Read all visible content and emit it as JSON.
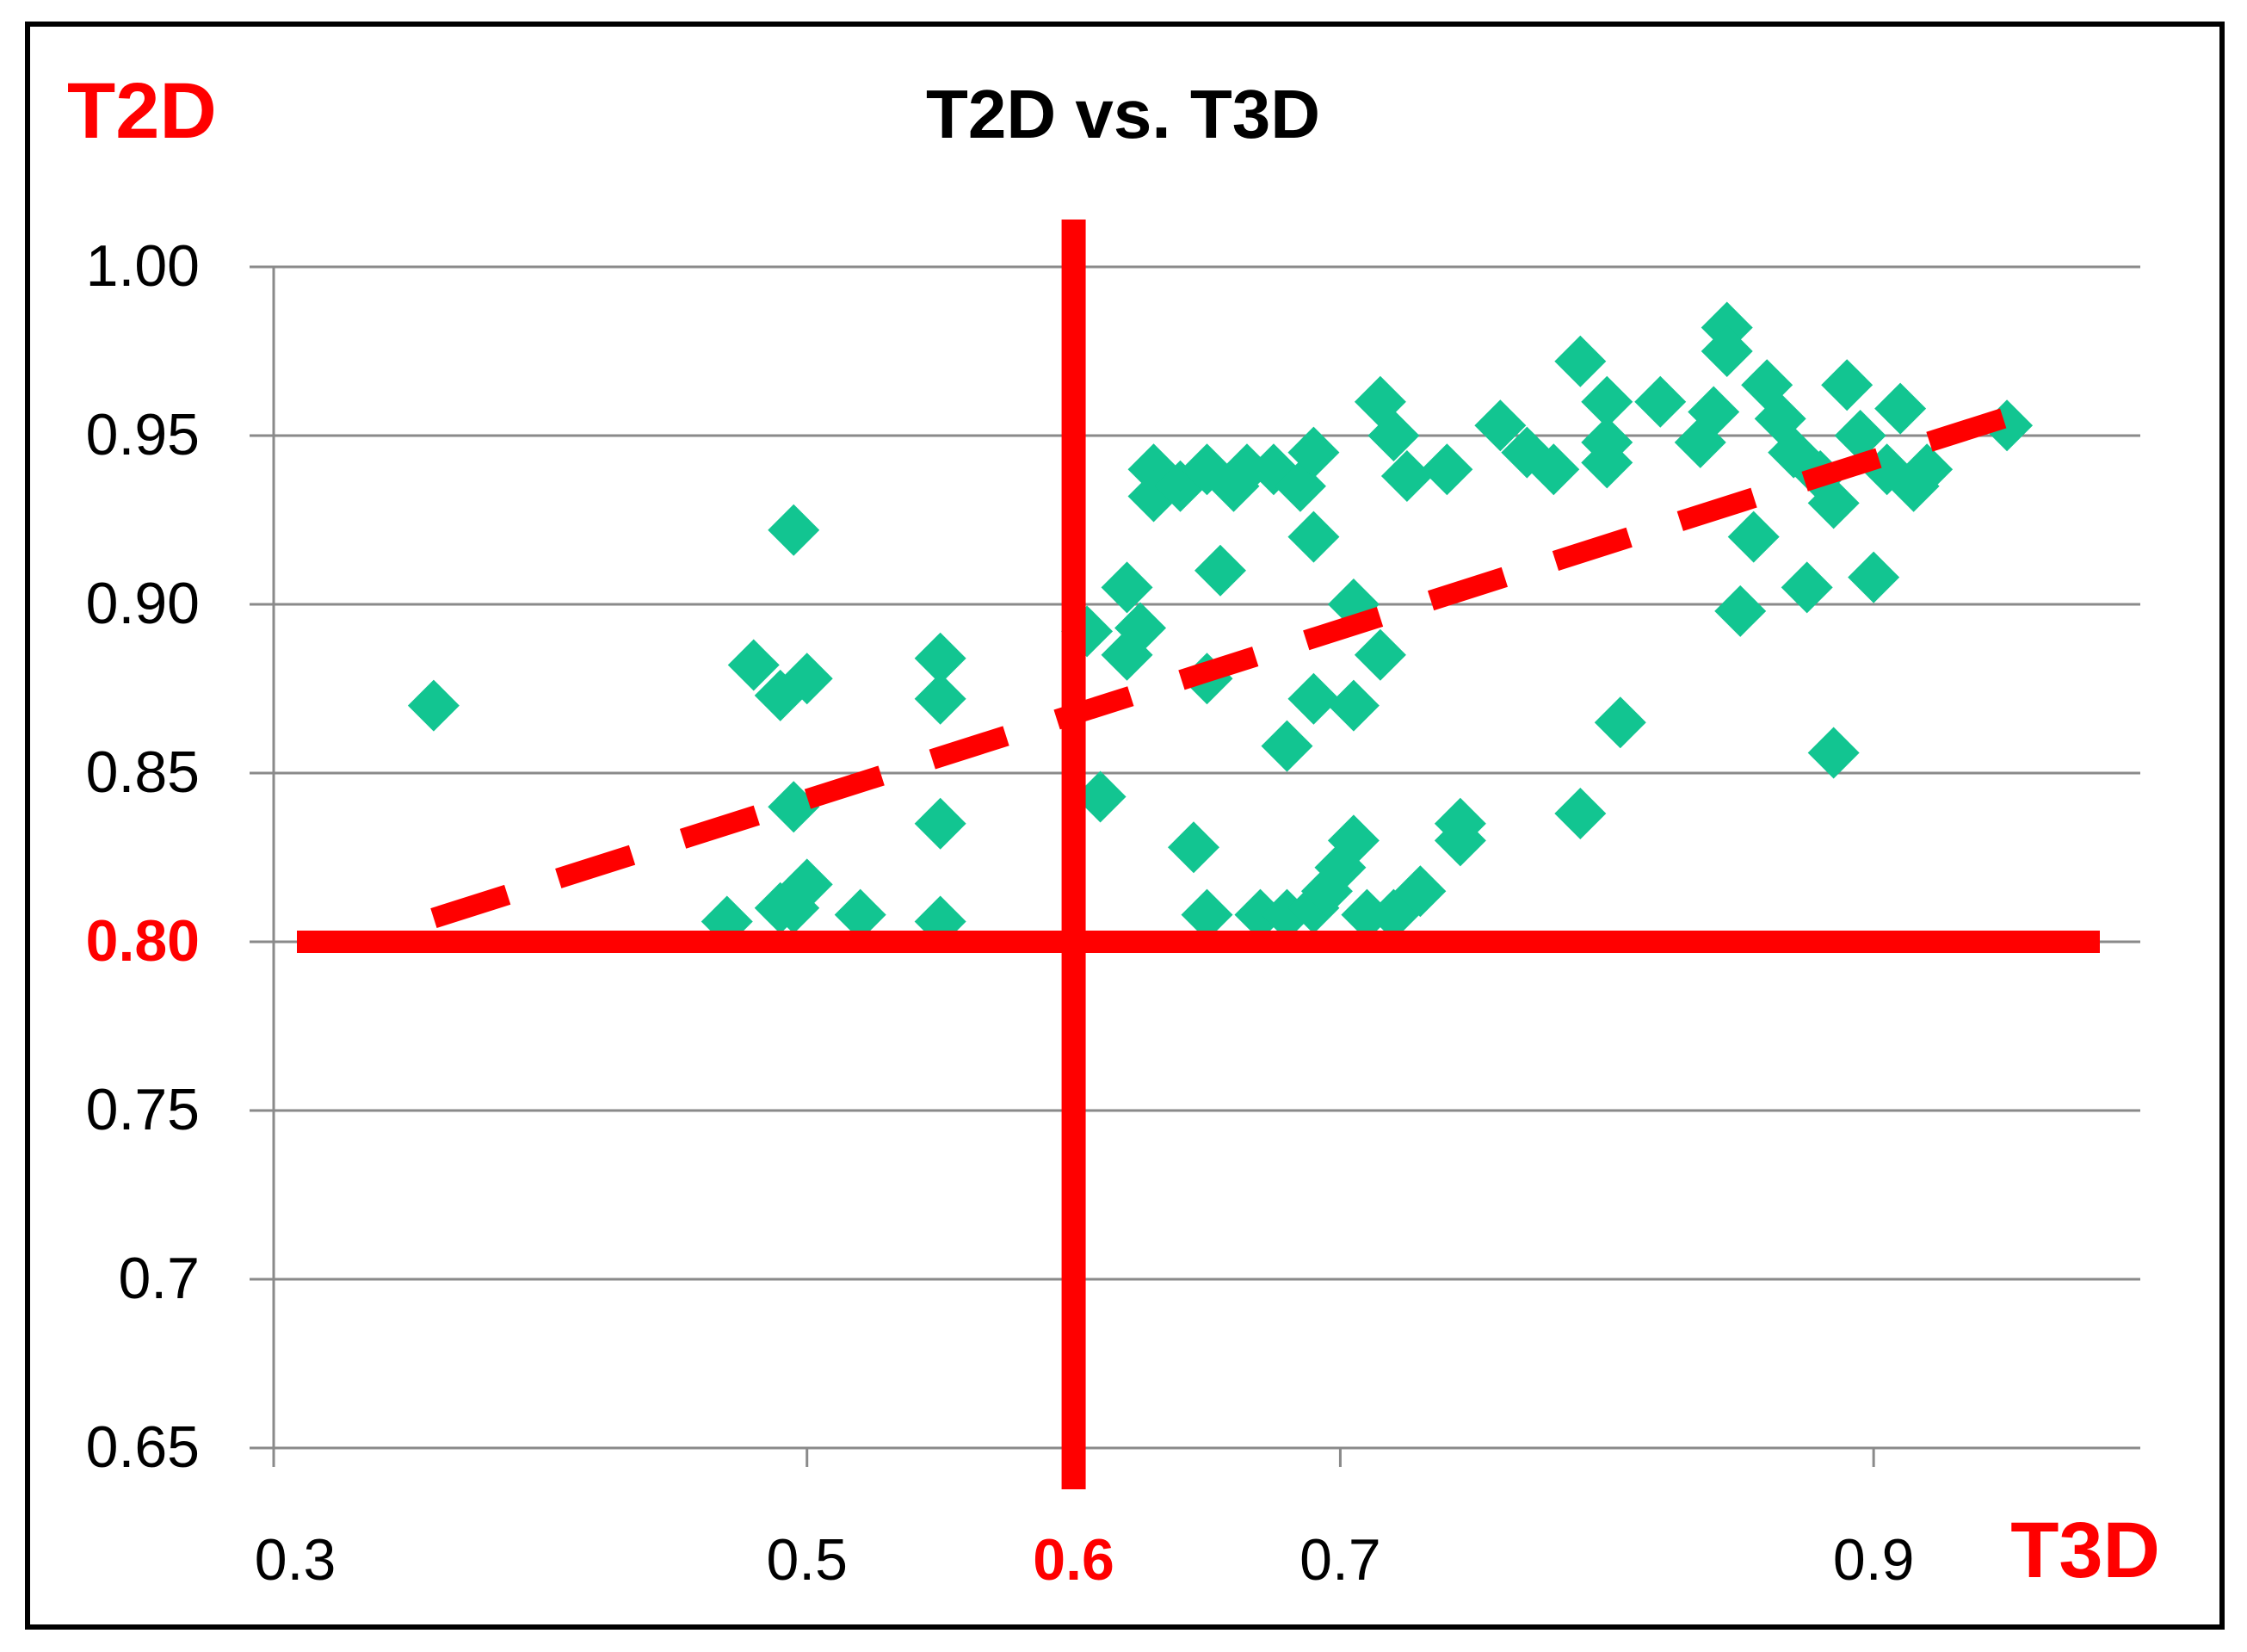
{
  "chart_data": {
    "type": "scatter",
    "title": "T2D vs. T3D",
    "xlabel": "T3D",
    "ylabel": "T2D",
    "xlim": [
      0.3,
      1.0
    ],
    "ylim": [
      0.65,
      1.0
    ],
    "x_ticks": [
      {
        "value": 0.3,
        "label": "0.3",
        "highlight": false
      },
      {
        "value": 0.5,
        "label": "0.5",
        "highlight": false
      },
      {
        "value": 0.6,
        "label": "0.6",
        "highlight": true
      },
      {
        "value": 0.7,
        "label": "0.7",
        "highlight": false
      },
      {
        "value": 0.9,
        "label": "0.9",
        "highlight": false
      }
    ],
    "x_minor_ticks": [
      0.3,
      0.5,
      0.7,
      0.9
    ],
    "y_ticks": [
      {
        "value": 1.0,
        "label": "1.00",
        "highlight": false
      },
      {
        "value": 0.95,
        "label": "0.95",
        "highlight": false
      },
      {
        "value": 0.9,
        "label": "0.90",
        "highlight": false
      },
      {
        "value": 0.85,
        "label": "0.85",
        "highlight": false
      },
      {
        "value": 0.8,
        "label": "0.80",
        "highlight": true
      },
      {
        "value": 0.75,
        "label": "0.75",
        "highlight": false
      },
      {
        "value": 0.7,
        "label": "0.7",
        "highlight": false
      },
      {
        "value": 0.65,
        "label": "0.65",
        "highlight": false
      }
    ],
    "grid": true,
    "threshold_lines": {
      "x": 0.6,
      "y": 0.8,
      "color": "#ff0000"
    },
    "trendline": {
      "style": "dashed",
      "color": "#ff0000",
      "x": [
        0.36,
        0.96
      ],
      "y": [
        0.807,
        0.958
      ]
    },
    "series": [
      {
        "name": "T2D vs. T3D",
        "color": "#12c591",
        "marker": "diamond",
        "points": [
          [
            0.36,
            0.87
          ],
          [
            0.47,
            0.806
          ],
          [
            0.49,
            0.81
          ],
          [
            0.48,
            0.882
          ],
          [
            0.49,
            0.873
          ],
          [
            0.495,
            0.84
          ],
          [
            0.495,
            0.922
          ],
          [
            0.5,
            0.878
          ],
          [
            0.495,
            0.81
          ],
          [
            0.5,
            0.817
          ],
          [
            0.52,
            0.808
          ],
          [
            0.55,
            0.806
          ],
          [
            0.55,
            0.884
          ],
          [
            0.55,
            0.872
          ],
          [
            0.55,
            0.835
          ],
          [
            0.605,
            0.892
          ],
          [
            0.61,
            0.843
          ],
          [
            0.62,
            0.905
          ],
          [
            0.62,
            0.885
          ],
          [
            0.625,
            0.893
          ],
          [
            0.63,
            0.94
          ],
          [
            0.63,
            0.932
          ],
          [
            0.64,
            0.935
          ],
          [
            0.645,
            0.828
          ],
          [
            0.65,
            0.808
          ],
          [
            0.65,
            0.94
          ],
          [
            0.65,
            0.878
          ],
          [
            0.655,
            0.91
          ],
          [
            0.66,
            0.935
          ],
          [
            0.665,
            0.94
          ],
          [
            0.67,
            0.808
          ],
          [
            0.675,
            0.94
          ],
          [
            0.68,
            0.858
          ],
          [
            0.68,
            0.808
          ],
          [
            0.685,
            0.935
          ],
          [
            0.69,
            0.945
          ],
          [
            0.69,
            0.92
          ],
          [
            0.69,
            0.872
          ],
          [
            0.69,
            0.81
          ],
          [
            0.695,
            0.815
          ],
          [
            0.7,
            0.822
          ],
          [
            0.705,
            0.87
          ],
          [
            0.705,
            0.9
          ],
          [
            0.705,
            0.83
          ],
          [
            0.71,
            0.808
          ],
          [
            0.715,
            0.885
          ],
          [
            0.715,
            0.96
          ],
          [
            0.72,
            0.95
          ],
          [
            0.72,
            0.808
          ],
          [
            0.725,
            0.938
          ],
          [
            0.73,
            0.815
          ],
          [
            0.74,
            0.94
          ],
          [
            0.745,
            0.835
          ],
          [
            0.745,
            0.83
          ],
          [
            0.76,
            0.953
          ],
          [
            0.77,
            0.945
          ],
          [
            0.78,
            0.94
          ],
          [
            0.79,
            0.972
          ],
          [
            0.79,
            0.838
          ],
          [
            0.8,
            0.96
          ],
          [
            0.8,
            0.942
          ],
          [
            0.8,
            0.948
          ],
          [
            0.805,
            0.865
          ],
          [
            0.82,
            0.96
          ],
          [
            0.835,
            0.948
          ],
          [
            0.84,
            0.957
          ],
          [
            0.845,
            0.982
          ],
          [
            0.845,
            0.975
          ],
          [
            0.85,
            0.898
          ],
          [
            0.855,
            0.92
          ],
          [
            0.86,
            0.965
          ],
          [
            0.865,
            0.955
          ],
          [
            0.87,
            0.945
          ],
          [
            0.875,
            0.905
          ],
          [
            0.88,
            0.938
          ],
          [
            0.885,
            0.93
          ],
          [
            0.885,
            0.856
          ],
          [
            0.89,
            0.965
          ],
          [
            0.895,
            0.95
          ],
          [
            0.9,
            0.908
          ],
          [
            0.905,
            0.94
          ],
          [
            0.91,
            0.958
          ],
          [
            0.915,
            0.935
          ],
          [
            0.92,
            0.94
          ],
          [
            0.95,
            0.953
          ]
        ]
      }
    ]
  }
}
